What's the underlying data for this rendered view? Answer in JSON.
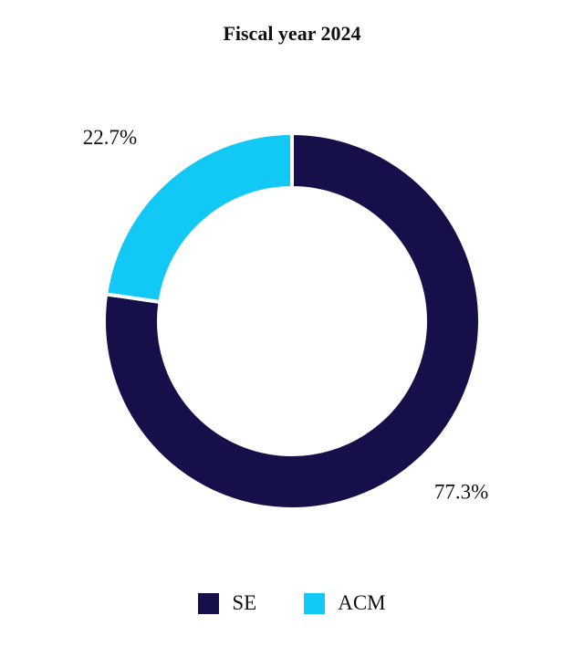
{
  "chart_data": {
    "type": "pie",
    "title": "Fiscal year 2024",
    "donut": true,
    "start": "12 o'clock",
    "direction": "clockwise",
    "legend_position": "bottom",
    "slices": [
      {
        "label": "SE",
        "value": 77.3,
        "value_label": "77.3%",
        "color": "#15104a"
      },
      {
        "label": "ACM",
        "value": 22.7,
        "value_label": "22.7%",
        "color": "#12c8f5"
      }
    ]
  }
}
